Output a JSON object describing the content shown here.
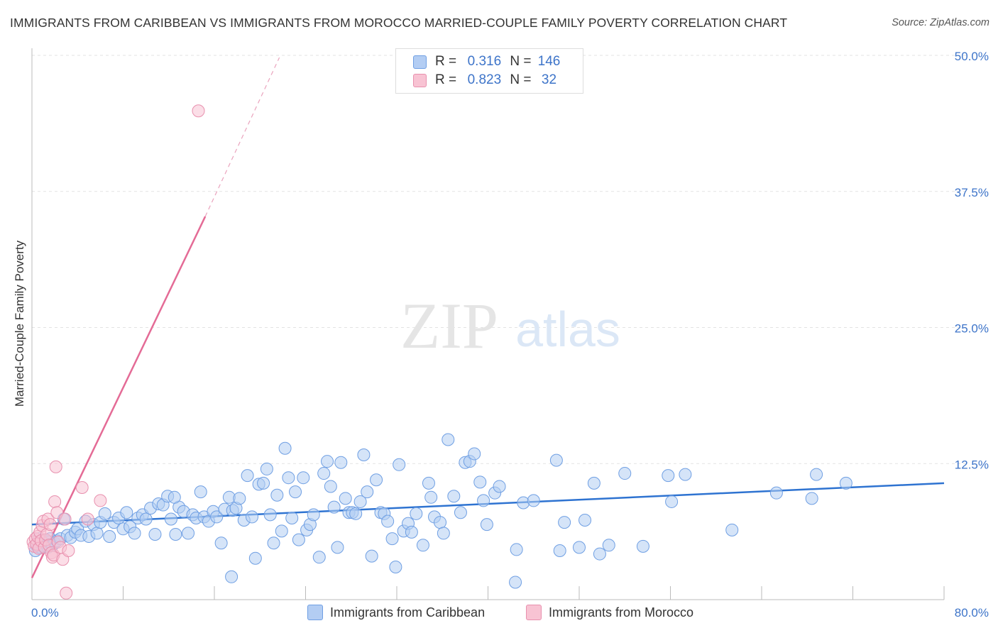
{
  "title": "IMMIGRANTS FROM CARIBBEAN VS IMMIGRANTS FROM MOROCCO MARRIED-COUPLE FAMILY POVERTY CORRELATION CHART",
  "source": "Source: ZipAtlas.com",
  "watermark": {
    "zip": "ZIP",
    "atlas": "atlas"
  },
  "legend": {
    "rows": [
      {
        "r_label": "R =",
        "r_value": "0.316",
        "n_label": "N =",
        "n_value": "146"
      },
      {
        "r_label": "R =",
        "r_value": "0.823",
        "n_label": "N =",
        "n_value": "32"
      }
    ]
  },
  "colors": {
    "blue_fill": "#b3cdf3",
    "blue_stroke": "#6f9fe3",
    "blue_line": "#2e73d1",
    "pink_fill": "#f8c3d3",
    "pink_stroke": "#e890ae",
    "pink_line": "#e46b96",
    "tick_label": "#3d74c9",
    "grid": "#e3e3e3"
  },
  "chart_data": {
    "type": "scatter",
    "title": "IMMIGRANTS FROM CARIBBEAN VS IMMIGRANTS FROM MOROCCO MARRIED-COUPLE FAMILY POVERTY CORRELATION CHART",
    "xlabel": "",
    "ylabel": "Married-Couple Family Poverty",
    "xlim": [
      0,
      80
    ],
    "ylim": [
      0,
      50
    ],
    "x_tick_labels": [
      "0.0%",
      "80.0%"
    ],
    "y_ticks": [
      12.5,
      25.0,
      37.5,
      50.0
    ],
    "y_tick_labels": [
      "12.5%",
      "25.0%",
      "37.5%",
      "50.0%"
    ],
    "grid": true,
    "legend_position": "top-center",
    "series": [
      {
        "name": "Immigrants from Caribbean",
        "color": "#b3cdf3",
        "r": 0.316,
        "n": 146,
        "trendline": {
          "x": [
            0,
            80
          ],
          "y": [
            6.9,
            10.7
          ]
        },
        "points": [
          [
            0.3,
            4.5
          ],
          [
            0.4,
            5.0
          ],
          [
            0.5,
            5.3
          ],
          [
            0.6,
            5.6
          ],
          [
            0.7,
            4.8
          ],
          [
            0.8,
            5.2
          ],
          [
            0.9,
            5.5
          ],
          [
            1.0,
            5.0
          ],
          [
            1.1,
            4.9
          ],
          [
            1.2,
            5.4
          ],
          [
            1.3,
            5.1
          ],
          [
            1.4,
            4.8
          ],
          [
            1.5,
            5.3
          ],
          [
            1.6,
            5.6
          ],
          [
            1.8,
            5.0
          ],
          [
            2.0,
            5.2
          ],
          [
            2.2,
            5.4
          ],
          [
            2.5,
            5.6
          ],
          [
            2.8,
            7.4
          ],
          [
            3.1,
            5.9
          ],
          [
            3.4,
            5.7
          ],
          [
            3.8,
            6.2
          ],
          [
            4.0,
            6.5
          ],
          [
            4.3,
            5.9
          ],
          [
            4.7,
            7.2
          ],
          [
            5.0,
            5.8
          ],
          [
            5.4,
            6.9
          ],
          [
            5.7,
            6.1
          ],
          [
            6.0,
            7.1
          ],
          [
            6.4,
            7.9
          ],
          [
            6.8,
            5.8
          ],
          [
            7.2,
            7.1
          ],
          [
            7.6,
            7.5
          ],
          [
            8.0,
            6.5
          ],
          [
            8.3,
            8.0
          ],
          [
            8.6,
            6.7
          ],
          [
            9.0,
            6.1
          ],
          [
            9.3,
            7.5
          ],
          [
            9.7,
            7.8
          ],
          [
            10.0,
            7.4
          ],
          [
            10.4,
            8.4
          ],
          [
            10.8,
            6.0
          ],
          [
            11.1,
            8.8
          ],
          [
            11.5,
            8.7
          ],
          [
            11.9,
            9.5
          ],
          [
            12.2,
            7.4
          ],
          [
            12.6,
            6.0
          ],
          [
            12.9,
            8.5
          ],
          [
            13.3,
            8.1
          ],
          [
            13.7,
            6.1
          ],
          [
            14.1,
            7.8
          ],
          [
            14.4,
            7.5
          ],
          [
            14.8,
            9.9
          ],
          [
            15.1,
            7.6
          ],
          [
            15.5,
            7.2
          ],
          [
            15.9,
            8.1
          ],
          [
            16.2,
            7.6
          ],
          [
            16.6,
            5.2
          ],
          [
            16.9,
            8.3
          ],
          [
            17.3,
            9.4
          ],
          [
            17.6,
            8.2
          ],
          [
            17.9,
            8.4
          ],
          [
            18.2,
            9.3
          ],
          [
            18.6,
            7.3
          ],
          [
            18.9,
            11.4
          ],
          [
            19.3,
            7.6
          ],
          [
            19.6,
            3.8
          ],
          [
            19.9,
            10.6
          ],
          [
            20.3,
            10.7
          ],
          [
            20.6,
            12.0
          ],
          [
            20.9,
            7.8
          ],
          [
            21.2,
            5.2
          ],
          [
            21.5,
            9.6
          ],
          [
            21.9,
            6.3
          ],
          [
            22.2,
            13.9
          ],
          [
            22.5,
            11.2
          ],
          [
            22.8,
            7.5
          ],
          [
            23.1,
            9.9
          ],
          [
            23.4,
            5.5
          ],
          [
            23.8,
            11.2
          ],
          [
            24.1,
            6.4
          ],
          [
            24.4,
            6.9
          ],
          [
            24.7,
            7.8
          ],
          [
            25.2,
            3.9
          ],
          [
            25.6,
            11.6
          ],
          [
            25.9,
            12.7
          ],
          [
            26.2,
            10.4
          ],
          [
            26.5,
            8.5
          ],
          [
            26.8,
            4.8
          ],
          [
            27.1,
            12.6
          ],
          [
            27.5,
            9.3
          ],
          [
            27.8,
            8.0
          ],
          [
            28.1,
            8.0
          ],
          [
            28.4,
            7.9
          ],
          [
            28.8,
            9.0
          ],
          [
            29.1,
            13.3
          ],
          [
            29.4,
            9.9
          ],
          [
            29.8,
            4.0
          ],
          [
            30.2,
            11.0
          ],
          [
            30.6,
            8.0
          ],
          [
            30.9,
            7.9
          ],
          [
            31.2,
            7.2
          ],
          [
            31.6,
            5.6
          ],
          [
            31.9,
            3.0
          ],
          [
            32.2,
            12.4
          ],
          [
            32.6,
            6.3
          ],
          [
            33.0,
            7.0
          ],
          [
            33.3,
            6.2
          ],
          [
            33.7,
            7.9
          ],
          [
            34.3,
            5.0
          ],
          [
            34.8,
            10.7
          ],
          [
            35.0,
            9.4
          ],
          [
            35.3,
            7.6
          ],
          [
            35.8,
            7.1
          ],
          [
            36.1,
            6.1
          ],
          [
            36.5,
            14.7
          ],
          [
            37.0,
            9.5
          ],
          [
            37.6,
            8.0
          ],
          [
            38.0,
            12.6
          ],
          [
            38.4,
            12.7
          ],
          [
            38.8,
            13.4
          ],
          [
            39.3,
            10.8
          ],
          [
            39.6,
            9.1
          ],
          [
            39.9,
            6.9
          ],
          [
            40.6,
            9.8
          ],
          [
            41.0,
            10.4
          ],
          [
            42.5,
            4.6
          ],
          [
            43.1,
            8.9
          ],
          [
            44.0,
            9.1
          ],
          [
            46.0,
            12.8
          ],
          [
            46.3,
            4.5
          ],
          [
            46.7,
            7.1
          ],
          [
            48.0,
            4.8
          ],
          [
            48.5,
            7.3
          ],
          [
            49.3,
            10.7
          ],
          [
            49.8,
            4.2
          ],
          [
            50.6,
            5.0
          ],
          [
            52.0,
            11.6
          ],
          [
            53.6,
            4.9
          ],
          [
            55.8,
            11.4
          ],
          [
            56.1,
            9.0
          ],
          [
            57.3,
            11.5
          ],
          [
            61.4,
            6.4
          ],
          [
            65.3,
            9.8
          ],
          [
            68.4,
            9.3
          ],
          [
            68.8,
            11.5
          ],
          [
            71.4,
            10.7
          ],
          [
            42.4,
            1.6
          ],
          [
            17.5,
            2.1
          ],
          [
            12.5,
            9.4
          ]
        ]
      },
      {
        "name": "Immigrants from Morocco",
        "color": "#f8c3d3",
        "r": 0.823,
        "n": 32,
        "trendline": {
          "x": [
            0,
            15.2
          ],
          "y": [
            2.0,
            35.2
          ],
          "dashed_extension": {
            "x": [
              15.2,
              21.7
            ],
            "y": [
              35.2,
              49.8
            ]
          }
        },
        "points": [
          [
            0.1,
            5.3
          ],
          [
            0.2,
            4.9
          ],
          [
            0.3,
            5.6
          ],
          [
            0.4,
            5.1
          ],
          [
            0.5,
            5.8
          ],
          [
            0.6,
            4.7
          ],
          [
            0.7,
            6.2
          ],
          [
            0.8,
            5.4
          ],
          [
            0.9,
            6.8
          ],
          [
            1.0,
            7.2
          ],
          [
            1.1,
            4.8
          ],
          [
            1.2,
            5.5
          ],
          [
            1.3,
            6.0
          ],
          [
            1.4,
            7.4
          ],
          [
            1.5,
            5.0
          ],
          [
            1.6,
            6.9
          ],
          [
            1.7,
            4.3
          ],
          [
            1.8,
            3.9
          ],
          [
            1.9,
            4.1
          ],
          [
            2.0,
            9.0
          ],
          [
            2.1,
            12.2
          ],
          [
            2.2,
            8.0
          ],
          [
            2.3,
            5.3
          ],
          [
            2.5,
            4.8
          ],
          [
            2.7,
            3.7
          ],
          [
            2.9,
            7.4
          ],
          [
            3.0,
            0.6
          ],
          [
            3.2,
            4.5
          ],
          [
            4.4,
            10.3
          ],
          [
            4.9,
            7.4
          ],
          [
            6.0,
            9.1
          ],
          [
            14.6,
            44.9
          ]
        ]
      }
    ]
  }
}
